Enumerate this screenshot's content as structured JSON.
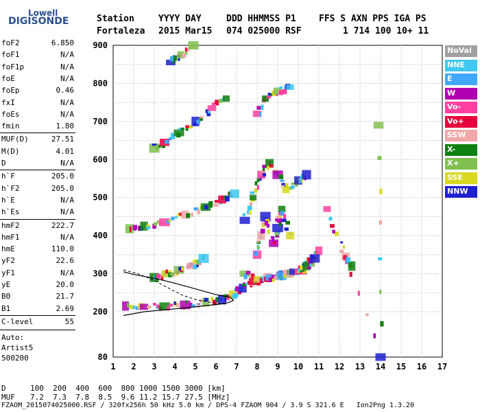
{
  "logo": {
    "line1": "Lowell",
    "line2": "DIGISONDE"
  },
  "header": {
    "labels": [
      "Station",
      "YYYY DAY",
      "DDD HHMMSS P1",
      "FFS S AXN PPS IGA PS"
    ],
    "values": [
      "Fortaleza",
      "2015 Mar15",
      "074 025000 RSF",
      "1 714 100 10+ 11"
    ]
  },
  "parameters": [
    {
      "name": "foF2",
      "value": "6.850"
    },
    {
      "name": "foF1",
      "value": "N/A"
    },
    {
      "name": "foF1p",
      "value": "N/A"
    },
    {
      "name": "foE",
      "value": "N/A"
    },
    {
      "name": "foEp",
      "value": "0.46"
    },
    {
      "name": "fxI",
      "value": "N/A"
    },
    {
      "name": "foEs",
      "value": "N/A"
    },
    {
      "name": "fmin",
      "value": "1.80"
    },
    {
      "name": "MUF(D)",
      "value": "27.51"
    },
    {
      "name": "M(D)",
      "value": "4.01"
    },
    {
      "name": "D",
      "value": "N/A"
    },
    {
      "name": "h`F",
      "value": "205.0"
    },
    {
      "name": "h`F2",
      "value": "205.0"
    },
    {
      "name": "h`E",
      "value": "N/A"
    },
    {
      "name": "h`Es",
      "value": "N/A"
    },
    {
      "name": "hmF2",
      "value": "222.7"
    },
    {
      "name": "hmF1",
      "value": "N/A"
    },
    {
      "name": "hmE",
      "value": "110.0"
    },
    {
      "name": "yF2",
      "value": "22.6"
    },
    {
      "name": "yF1",
      "value": "N/A"
    },
    {
      "name": "yE",
      "value": "20.0"
    },
    {
      "name": "B0",
      "value": "21.7"
    },
    {
      "name": "B1",
      "value": "2.69"
    },
    {
      "name": "C-level",
      "value": "55"
    }
  ],
  "auto": {
    "line1": "Auto:",
    "line2": "Artist5",
    "line3": "500200"
  },
  "legend": [
    {
      "label": "NoVal",
      "color": "#a0a0a0"
    },
    {
      "label": "NNE",
      "color": "#40c8f0"
    },
    {
      "label": "E",
      "color": "#40a8ff"
    },
    {
      "label": "W",
      "color": "#b000b0"
    },
    {
      "label": "Vo-",
      "color": "#ff40a0"
    },
    {
      "label": "Vo+",
      "color": "#e8003c"
    },
    {
      "label": "SSW",
      "color": "#f0a8a8"
    },
    {
      "label": "X-",
      "color": "#108010"
    },
    {
      "label": "X+",
      "color": "#80c050"
    },
    {
      "label": "SSE",
      "color": "#d8d820"
    },
    {
      "label": "NNW",
      "color": "#2020d0"
    }
  ],
  "footer": {
    "d_label": "D",
    "d_values": "100  200  400  600  800 1000 1500 3000 [km]",
    "muf_label": "MUF",
    "muf_values": "7.2  7.3  7.8  8.5  9.6 11.2 15.7 27.5 [MHz]",
    "file_info": "FZAOM_2015074025000.RSF / 320fx256h 50 kHz 5.0 km / DPS-4 FZAOM 904 / 3.9 S 321.6 E   Ion2Png 1.3.20"
  },
  "chart_data": {
    "type": "scatter",
    "x_ticks": [
      "1",
      "2",
      "3",
      "4",
      "5",
      "6",
      "7",
      "8",
      "9",
      "10",
      "11",
      "12",
      "13",
      "14",
      "15",
      "16",
      "17"
    ],
    "y_ticks": [
      "80",
      "200",
      "300",
      "400",
      "500",
      "600",
      "700",
      "800",
      "900"
    ],
    "xlim": [
      1,
      17
    ],
    "ylim": [
      80,
      900
    ],
    "grid": true,
    "legend_position": "right",
    "traces": [
      {
        "mode": "F2 O-trace 1st hop",
        "points": [
          [
            1.6,
            215
          ],
          [
            2.5,
            213
          ],
          [
            3.5,
            214
          ],
          [
            4.5,
            218
          ],
          [
            5.5,
            225
          ],
          [
            6.3,
            232
          ],
          [
            6.8,
            245
          ],
          [
            7.3,
            262
          ],
          [
            7.8,
            280
          ],
          [
            8.5,
            290
          ],
          [
            9.5,
            300
          ],
          [
            10.2,
            310
          ],
          [
            10.6,
            330
          ],
          [
            11.0,
            360
          ]
        ]
      },
      {
        "mode": "F2 2nd hop",
        "points": [
          [
            1.8,
            418
          ],
          [
            2.5,
            425
          ],
          [
            3.5,
            435
          ],
          [
            4.5,
            455
          ],
          [
            5.5,
            475
          ],
          [
            6.3,
            495
          ],
          [
            6.9,
            510
          ]
        ]
      },
      {
        "mode": "F2 3rd hop",
        "points": [
          [
            3.0,
            630
          ],
          [
            3.5,
            645
          ],
          [
            4.2,
            670
          ],
          [
            5.0,
            700
          ],
          [
            5.8,
            735
          ],
          [
            6.5,
            760
          ]
        ]
      },
      {
        "mode": "F2 4th hop",
        "points": [
          [
            3.8,
            855
          ],
          [
            4.3,
            875
          ],
          [
            4.9,
            900
          ]
        ]
      },
      {
        "mode": "high-frequency cluster 2nd hop",
        "points": [
          [
            7.4,
            440
          ],
          [
            7.8,
            500
          ],
          [
            8.2,
            560
          ],
          [
            8.6,
            590
          ],
          [
            9.0,
            560
          ],
          [
            9.4,
            520
          ],
          [
            10.0,
            545
          ],
          [
            10.4,
            560
          ]
        ]
      },
      {
        "mode": "high-frequency cluster 1st hop",
        "points": [
          [
            7.4,
            300
          ],
          [
            8.0,
            285
          ],
          [
            8.6,
            290
          ],
          [
            9.2,
            295
          ],
          [
            9.8,
            305
          ],
          [
            10.4,
            320
          ],
          [
            10.8,
            340
          ]
        ]
      },
      {
        "mode": "high-frequency cluster 3rd hop",
        "points": [
          [
            8.0,
            720
          ],
          [
            8.4,
            760
          ],
          [
            9.0,
            780
          ],
          [
            9.6,
            790
          ]
        ]
      },
      {
        "mode": "spread vertical streaks",
        "points": [
          [
            8.0,
            350
          ],
          [
            8.2,
            400
          ],
          [
            8.4,
            450
          ],
          [
            8.8,
            380
          ],
          [
            9.0,
            420
          ],
          [
            9.2,
            470
          ],
          [
            9.6,
            400
          ]
        ]
      },
      {
        "mode": "oblique low",
        "points": [
          [
            3.0,
            290
          ],
          [
            3.6,
            300
          ],
          [
            4.2,
            310
          ],
          [
            4.8,
            320
          ],
          [
            5.4,
            340
          ]
        ]
      },
      {
        "mode": "isolated echoes",
        "points": [
          [
            12.3,
            345
          ],
          [
            12.6,
            320
          ],
          [
            11.4,
            470
          ],
          [
            14.0,
            80
          ],
          [
            13.9,
            690
          ]
        ]
      }
    ],
    "profile_solid": [
      [
        1.5,
        190
      ],
      [
        2.5,
        200
      ],
      [
        3.5,
        205
      ],
      [
        4.5,
        210
      ],
      [
        5.5,
        216
      ],
      [
        6.2,
        220
      ],
      [
        6.6,
        224
      ],
      [
        6.85,
        230
      ],
      [
        6.7,
        238
      ],
      [
        6.0,
        245
      ],
      [
        5.0,
        260
      ],
      [
        4.0,
        275
      ],
      [
        3.0,
        288
      ],
      [
        2.0,
        298
      ],
      [
        1.5,
        305
      ]
    ],
    "profile_dashed": [
      [
        1.5,
        310
      ],
      [
        2.2,
        300
      ],
      [
        2.9,
        285
      ],
      [
        3.6,
        265
      ],
      [
        4.3,
        245
      ],
      [
        5.0,
        232
      ],
      [
        5.8,
        224
      ],
      [
        6.5,
        220
      ]
    ]
  }
}
